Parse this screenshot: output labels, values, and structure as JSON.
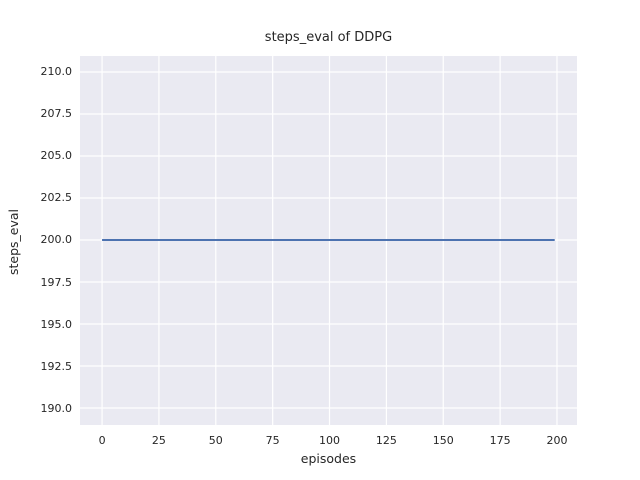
{
  "chart_data": {
    "type": "line",
    "title": "steps_eval of DDPG",
    "xlabel": "episodes",
    "ylabel": "steps_eval",
    "x_ticks": [
      0,
      25,
      50,
      75,
      100,
      125,
      150,
      175,
      200
    ],
    "x_tick_labels": [
      "0",
      "25",
      "50",
      "75",
      "100",
      "125",
      "150",
      "175",
      "200"
    ],
    "y_ticks": [
      190.0,
      192.5,
      195.0,
      197.5,
      200.0,
      202.5,
      205.0,
      207.5,
      210.0
    ],
    "y_tick_labels": [
      "190.0",
      "192.5",
      "195.0",
      "197.5",
      "200.0",
      "202.5",
      "205.0",
      "207.5",
      "210.0"
    ],
    "xlim": [
      -9.7,
      208.8
    ],
    "ylim": [
      188.99,
      210.95
    ],
    "grid": true,
    "legend": "none",
    "plot_background_color": "#eaeaf2",
    "grid_color": "#ffffff",
    "text_color": "#262626",
    "series": [
      {
        "name": "steps_eval",
        "color": "#4c72b0",
        "x": [
          0,
          199
        ],
        "y": [
          200.0,
          200.0
        ]
      }
    ]
  }
}
